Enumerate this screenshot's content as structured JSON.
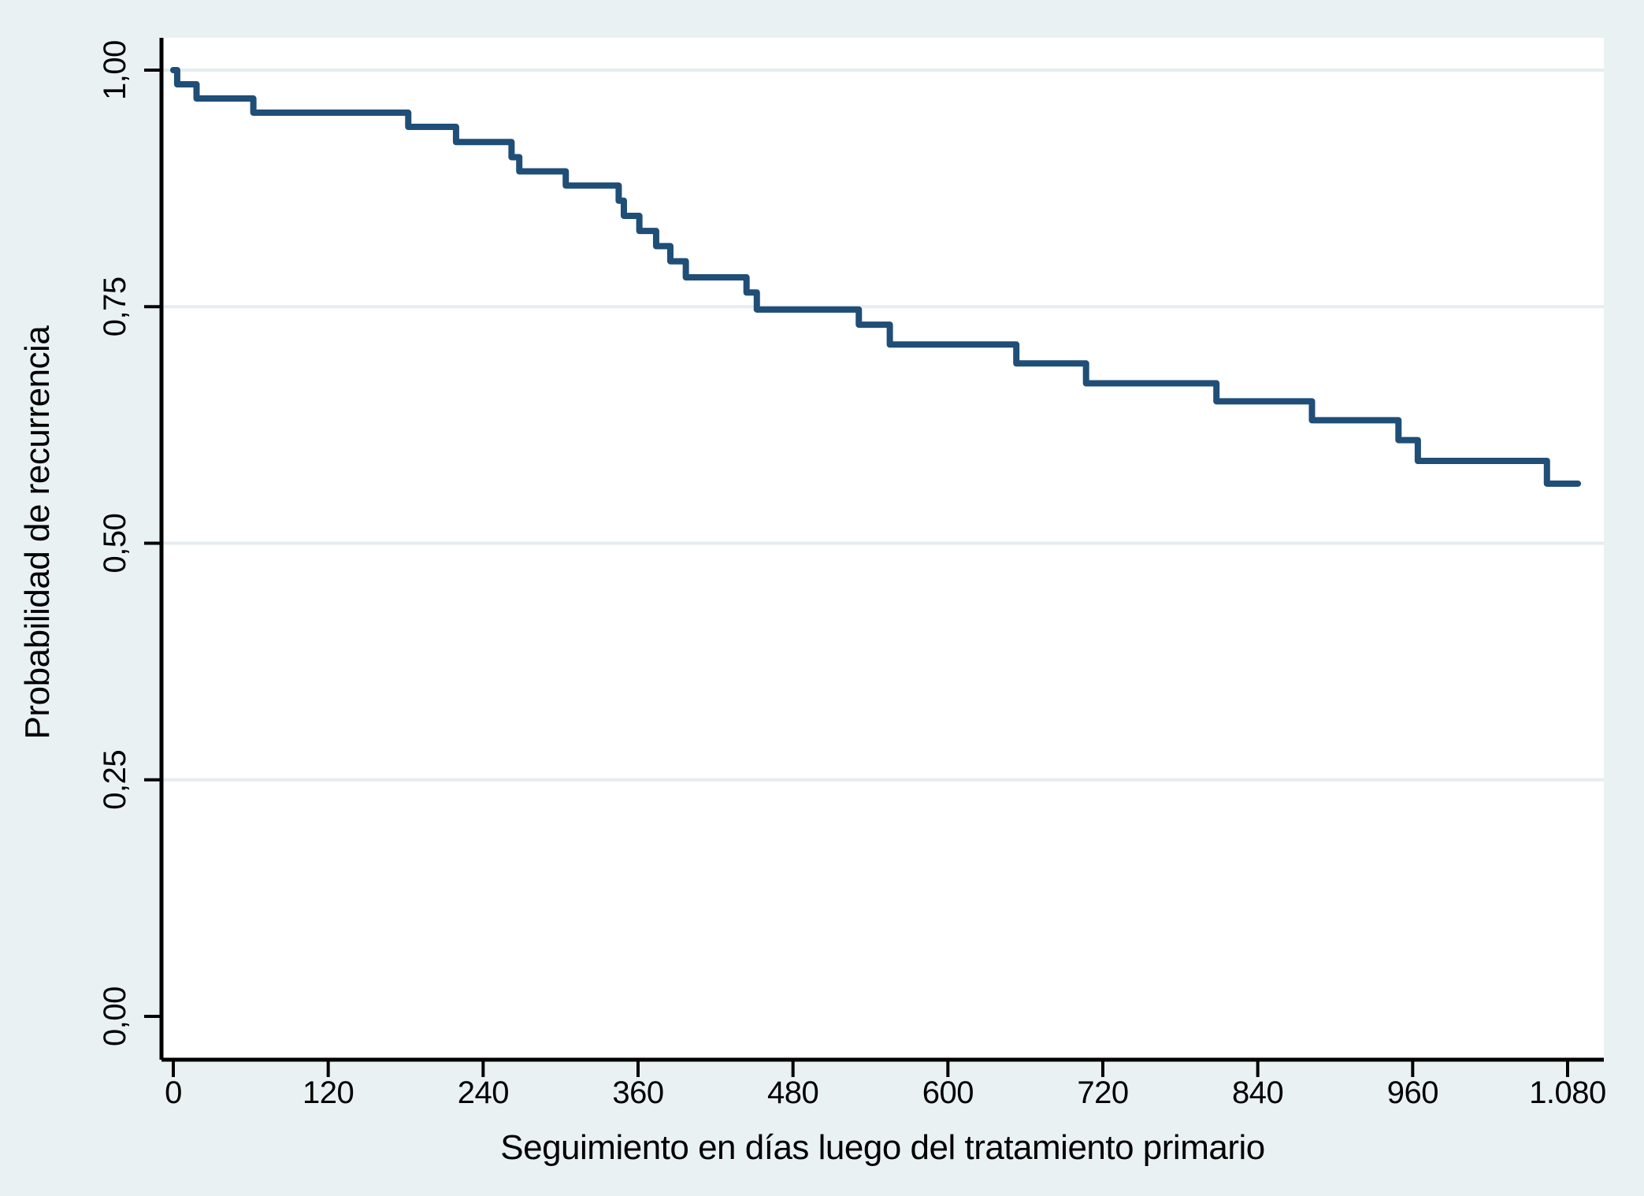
{
  "chart_data": {
    "type": "line",
    "subtype": "kaplan-meier-step",
    "title": "",
    "xlabel": "Seguimiento en días luego del tratamiento primario",
    "ylabel": "Probabilidad de recurrencia",
    "legend": "none",
    "grid": "horizontal-major",
    "x_ticks": [
      {
        "value": 0,
        "label": "0"
      },
      {
        "value": 120,
        "label": "120"
      },
      {
        "value": 240,
        "label": "240"
      },
      {
        "value": 360,
        "label": "360"
      },
      {
        "value": 480,
        "label": "480"
      },
      {
        "value": 600,
        "label": "600"
      },
      {
        "value": 720,
        "label": "720"
      },
      {
        "value": 840,
        "label": "840"
      },
      {
        "value": 960,
        "label": "960"
      },
      {
        "value": 1080,
        "label": "1.080"
      }
    ],
    "y_ticks": [
      {
        "value": 0.0,
        "label": "0,00"
      },
      {
        "value": 0.25,
        "label": "0,25"
      },
      {
        "value": 0.5,
        "label": "0,50"
      },
      {
        "value": 0.75,
        "label": "0,75"
      },
      {
        "value": 1.0,
        "label": "1,00"
      }
    ],
    "xlim": [
      0,
      1110
    ],
    "ylim": [
      0.0,
      1.0
    ],
    "series": [
      {
        "name": "curve",
        "step_points_day_probability": [
          [
            0,
            1.0
          ],
          [
            3,
            0.985
          ],
          [
            18,
            0.97
          ],
          [
            62,
            0.955
          ],
          [
            182,
            0.94
          ],
          [
            219,
            0.924
          ],
          [
            262,
            0.908
          ],
          [
            268,
            0.893
          ],
          [
            304,
            0.878
          ],
          [
            345,
            0.862
          ],
          [
            349,
            0.846
          ],
          [
            361,
            0.83
          ],
          [
            374,
            0.814
          ],
          [
            385,
            0.798
          ],
          [
            397,
            0.781
          ],
          [
            444,
            0.765
          ],
          [
            452,
            0.747
          ],
          [
            531,
            0.731
          ],
          [
            555,
            0.71
          ],
          [
            653,
            0.69
          ],
          [
            707,
            0.669
          ],
          [
            808,
            0.65
          ],
          [
            882,
            0.63
          ],
          [
            949,
            0.609
          ],
          [
            964,
            0.587
          ],
          [
            1064,
            0.563
          ]
        ],
        "curve_end_day": 1088
      }
    ],
    "colors": {
      "line": "#1F4E77",
      "background": "#EAF1F3",
      "plot_background": "#FFFFFF",
      "grid": "#E4EDF0",
      "axis": "#000000",
      "text": "#000000"
    }
  }
}
